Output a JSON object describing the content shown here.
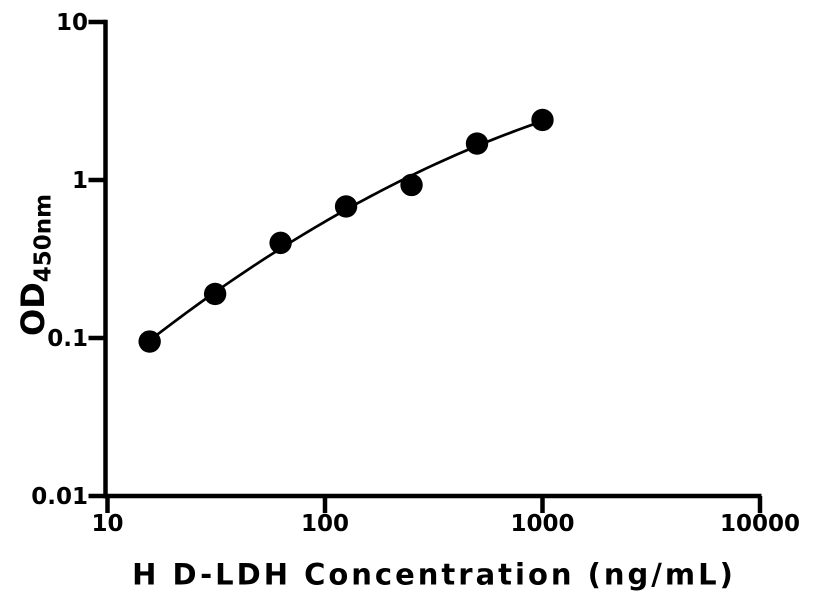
{
  "chart_data": {
    "type": "scatter",
    "title": "",
    "xlabel": "H D-LDH Concentration (ng/mL)",
    "ylabel": "OD450nm",
    "ylabel_main": "OD",
    "ylabel_sub": "450nm",
    "xscale": "log",
    "yscale": "log",
    "xlim": [
      10,
      10000
    ],
    "ylim": [
      0.01,
      10
    ],
    "xticks": [
      10,
      100,
      1000,
      10000
    ],
    "xtick_labels": [
      "10",
      "100",
      "1000",
      "10000"
    ],
    "yticks": [
      10,
      1,
      0.1,
      0.01
    ],
    "ytick_labels": [
      "10",
      "1",
      "0.1",
      "0.01"
    ],
    "x": [
      15.625,
      31.25,
      62.5,
      125,
      250,
      500,
      1000
    ],
    "y": [
      0.095,
      0.19,
      0.4,
      0.68,
      0.93,
      1.7,
      2.4
    ],
    "marker": "filled-circle",
    "marker_color": "#000000",
    "line_color": "#000000",
    "fit": "quadratic in log-log space",
    "grid": false,
    "legend": null
  }
}
